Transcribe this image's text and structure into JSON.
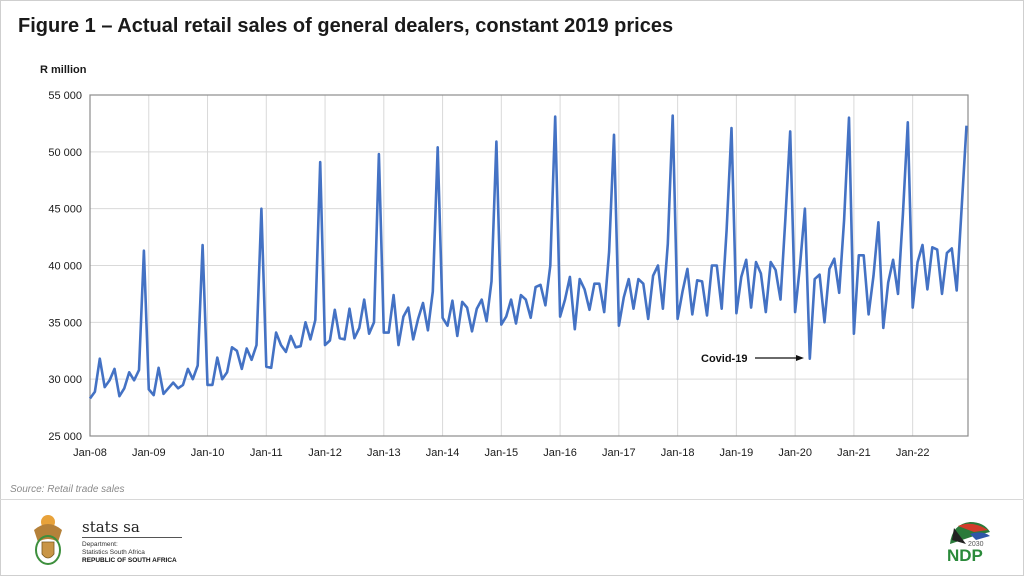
{
  "title": "Figure 1 – Actual retail sales of general dealers, constant 2019 prices",
  "source": "Source: Retail trade sales",
  "footer": {
    "stats_name": "stats sa",
    "dept_line1": "Department:",
    "dept_line2": "Statistics South Africa",
    "dept_line3": "REPUBLIC OF SOUTH AFRICA",
    "ndp_logo_text": "NDP 2030"
  },
  "chart_data": {
    "type": "line",
    "title": "Figure 1 – Actual retail sales of general dealers, constant 2019 prices",
    "ylabel": "R million",
    "xlabel": "",
    "ylim": [
      25000,
      55000
    ],
    "y_ticks": [
      25000,
      30000,
      35000,
      40000,
      45000,
      50000,
      55000
    ],
    "y_tick_labels": [
      "25 000",
      "30 000",
      "35 000",
      "40 000",
      "45 000",
      "50 000",
      "55 000"
    ],
    "x_tick_labels": [
      "Jan-08",
      "Jan-09",
      "Jan-10",
      "Jan-11",
      "Jan-12",
      "Jan-13",
      "Jan-14",
      "Jan-15",
      "Jan-16",
      "Jan-17",
      "Jan-18",
      "Jan-19",
      "Jan-20",
      "Jan-21",
      "Jan-22"
    ],
    "x_start": "Jan-08",
    "x_frequency": "monthly",
    "grid": true,
    "line_color": "#4472c4",
    "annotation": {
      "text": "Covid-19",
      "points_to": "Apr-20"
    },
    "series": [
      {
        "values": [
          28300,
          28900,
          31800,
          29300,
          29900,
          30900,
          28500,
          29200,
          30600,
          29900,
          30800,
          41300,
          29100,
          28600,
          31000,
          28700,
          29200,
          29700,
          29200,
          29500,
          30900,
          30000,
          31200,
          41800,
          29500,
          29500,
          31900,
          30000,
          30600,
          32800,
          32500,
          30900,
          32700,
          31700,
          33000,
          45000,
          31100,
          31000,
          34100,
          33000,
          32400,
          33800,
          32800,
          32900,
          35000,
          33500,
          35200,
          49100,
          33000,
          33400,
          36100,
          33600,
          33500,
          36200,
          33600,
          34500,
          37000,
          34000,
          35000,
          49800,
          34100,
          34100,
          37400,
          33000,
          35500,
          36300,
          33500,
          35300,
          36700,
          34300,
          37700,
          50400,
          35400,
          34700,
          36900,
          33800,
          36800,
          36300,
          34200,
          36200,
          37000,
          35100,
          38600,
          50900,
          34800,
          35500,
          37000,
          34900,
          37400,
          37000,
          35400,
          38100,
          38300,
          36500,
          40000,
          53100,
          35500,
          37000,
          39000,
          34400,
          38800,
          37900,
          36100,
          38400,
          38400,
          35900,
          41200,
          51500,
          34700,
          37200,
          38800,
          36200,
          38800,
          38400,
          35300,
          39100,
          40000,
          36200,
          41900,
          53200,
          35300,
          37700,
          39700,
          35700,
          38700,
          38600,
          35600,
          40000,
          40000,
          36200,
          43100,
          52100,
          35800,
          39000,
          40500,
          36300,
          40300,
          39300,
          35900,
          40300,
          39600,
          37000,
          44000,
          51800,
          35900,
          40000,
          45000,
          31800,
          38800,
          39200,
          35000,
          39700,
          40600,
          37600,
          44000,
          53000,
          34000,
          40900,
          40900,
          35700,
          39100,
          43800,
          34500,
          38500,
          40500,
          37500,
          44500,
          52600,
          36300,
          40300,
          41800,
          37900,
          41600,
          41400,
          37500,
          41100,
          41500,
          37800,
          45000,
          52300
        ]
      }
    ]
  }
}
